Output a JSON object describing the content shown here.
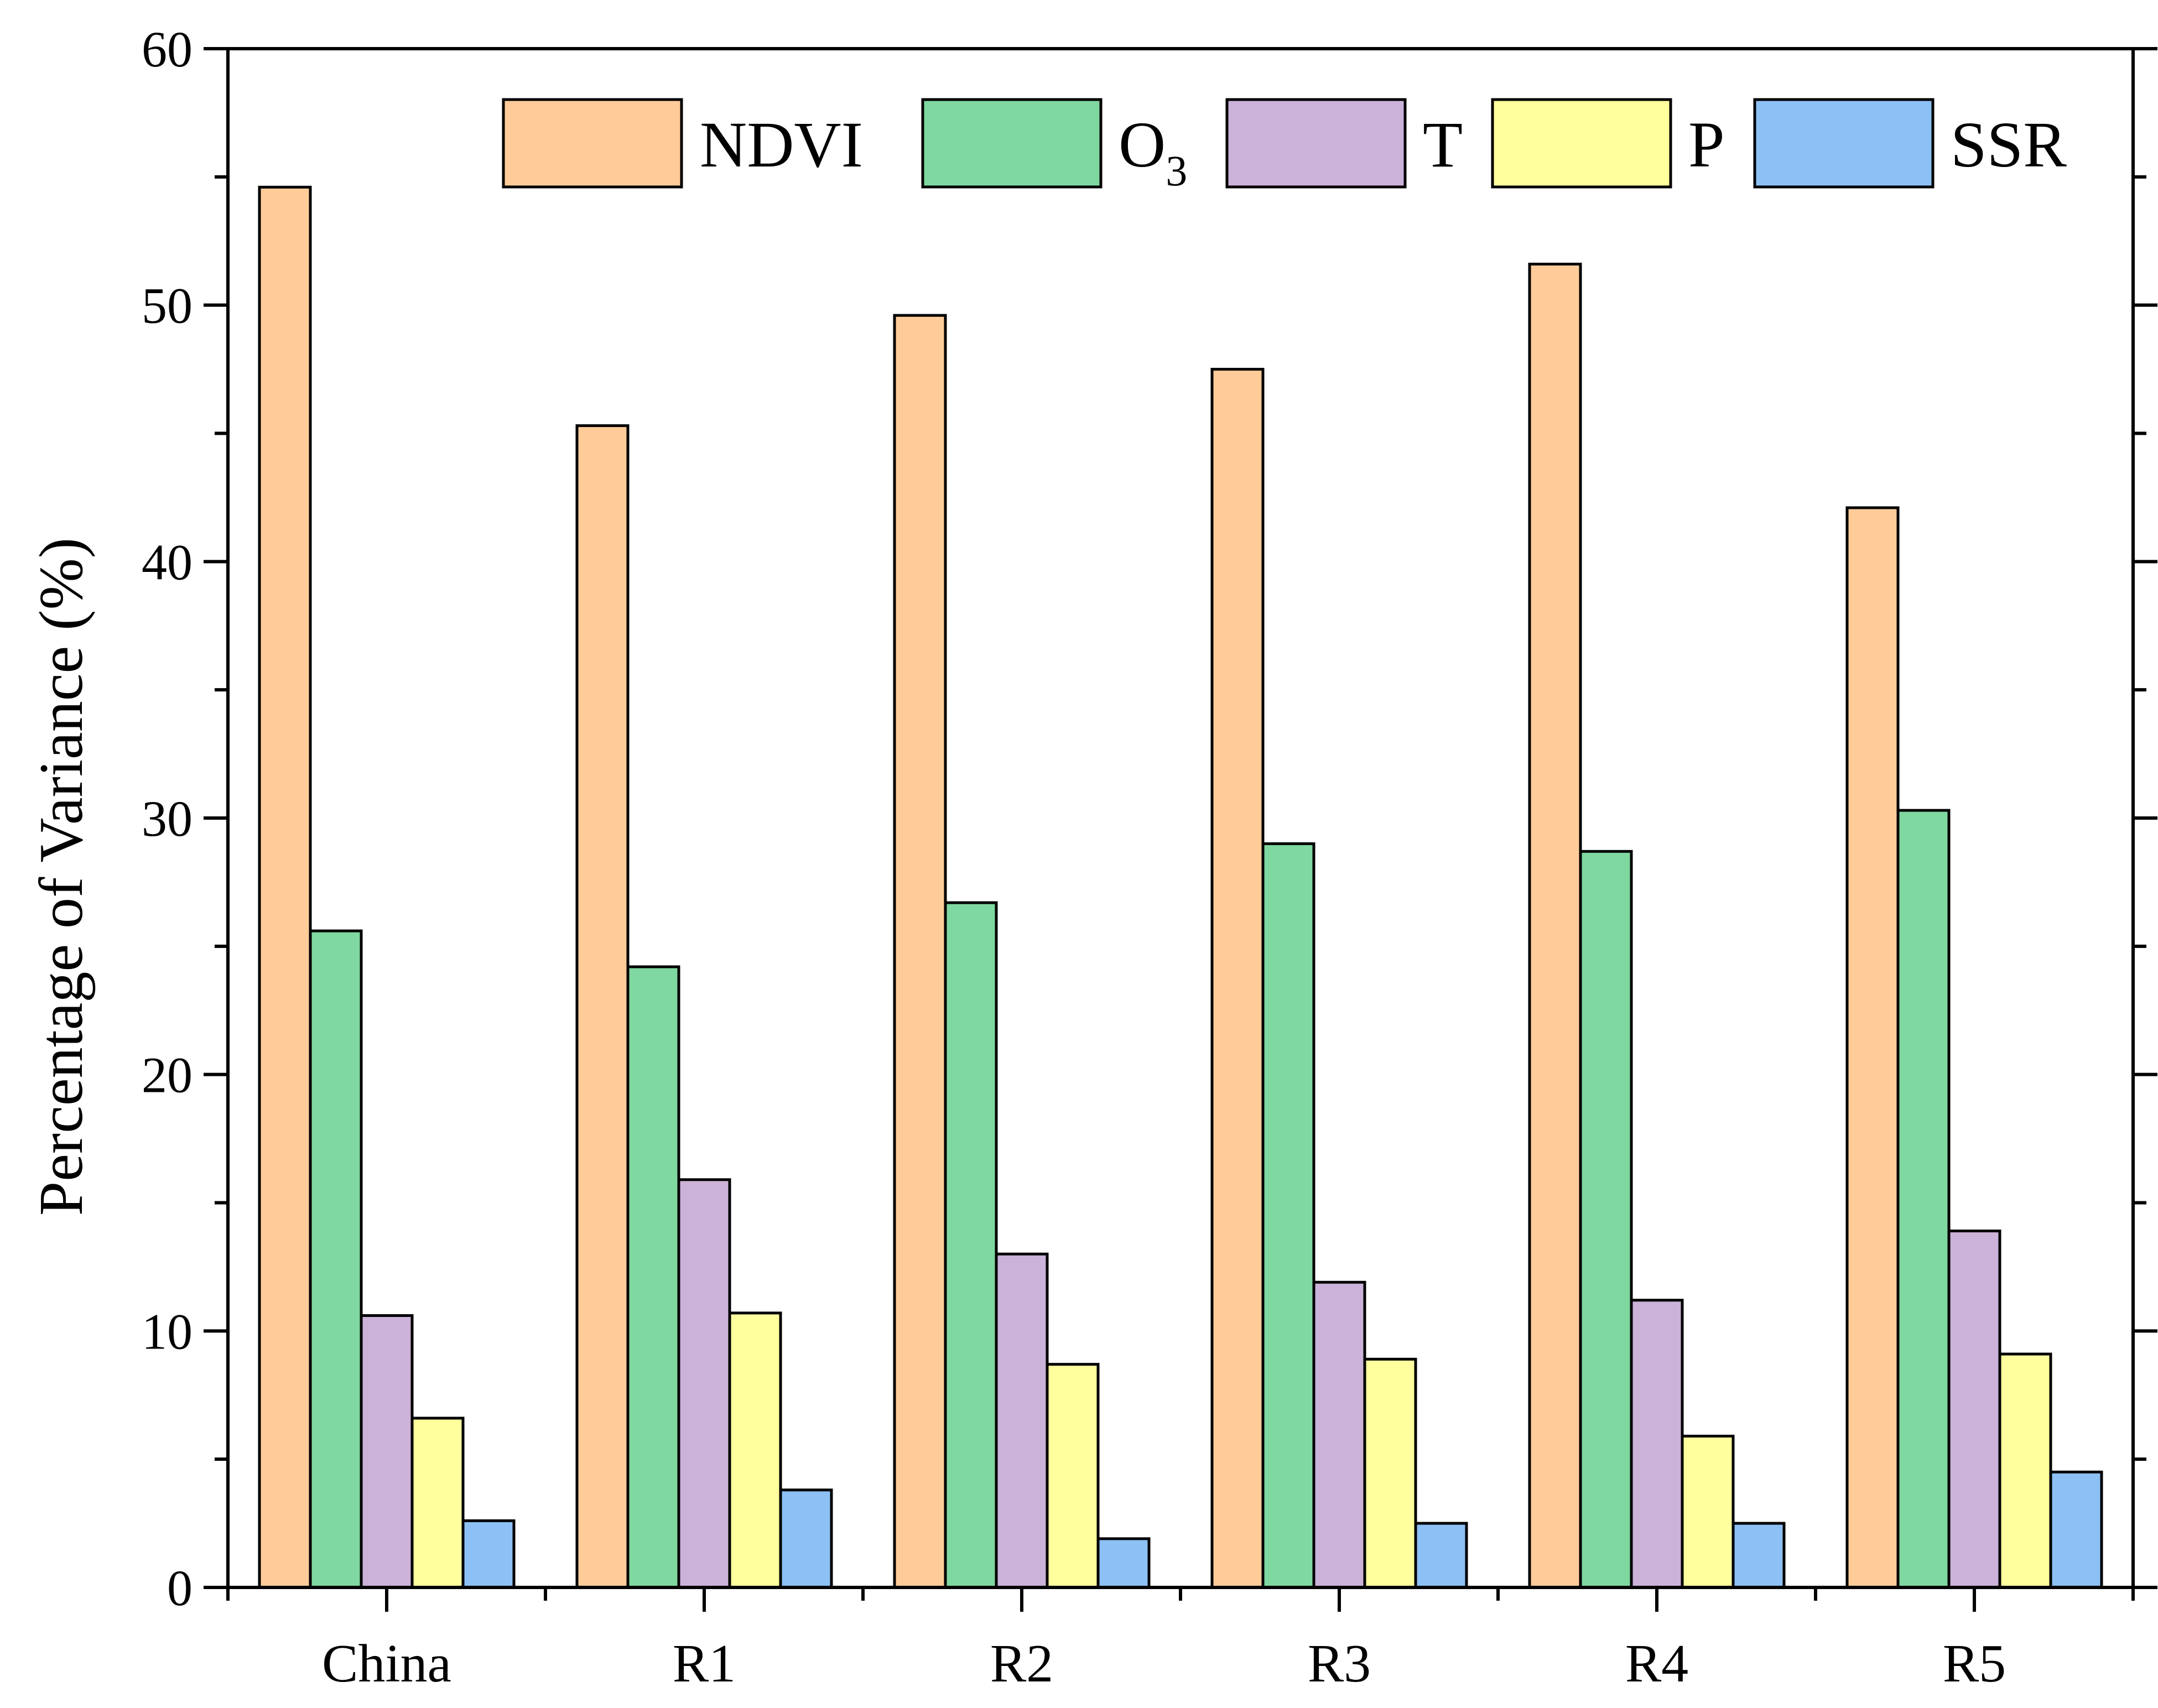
{
  "chart_data": {
    "type": "bar",
    "categories": [
      "China",
      "R1",
      "R2",
      "R3",
      "R4",
      "R5"
    ],
    "series": [
      {
        "name": "NDVI",
        "color": "#FFCC99",
        "values": [
          54.6,
          45.3,
          49.6,
          47.5,
          51.6,
          42.1
        ]
      },
      {
        "name": "O",
        "subscript": "3",
        "color": "#7FD8A0",
        "values": [
          25.6,
          24.2,
          26.7,
          29.0,
          28.7,
          30.3
        ]
      },
      {
        "name": "T",
        "color": "#CBB2D8",
        "values": [
          10.6,
          15.9,
          13.0,
          11.9,
          11.2,
          13.9
        ]
      },
      {
        "name": "P",
        "color": "#FFFF9E",
        "values": [
          6.6,
          10.7,
          8.7,
          8.9,
          5.9,
          9.1
        ]
      },
      {
        "name": "SSR",
        "color": "#8DC0F5",
        "values": [
          2.6,
          3.8,
          1.9,
          2.5,
          2.5,
          4.5
        ]
      }
    ],
    "title": "",
    "xlabel": "",
    "ylabel": "Percentage of Variance (%)",
    "ylim": [
      0,
      60
    ],
    "yticks": [
      0,
      10,
      20,
      30,
      40,
      50,
      60
    ],
    "legend_position": "top-right",
    "grid": false
  }
}
